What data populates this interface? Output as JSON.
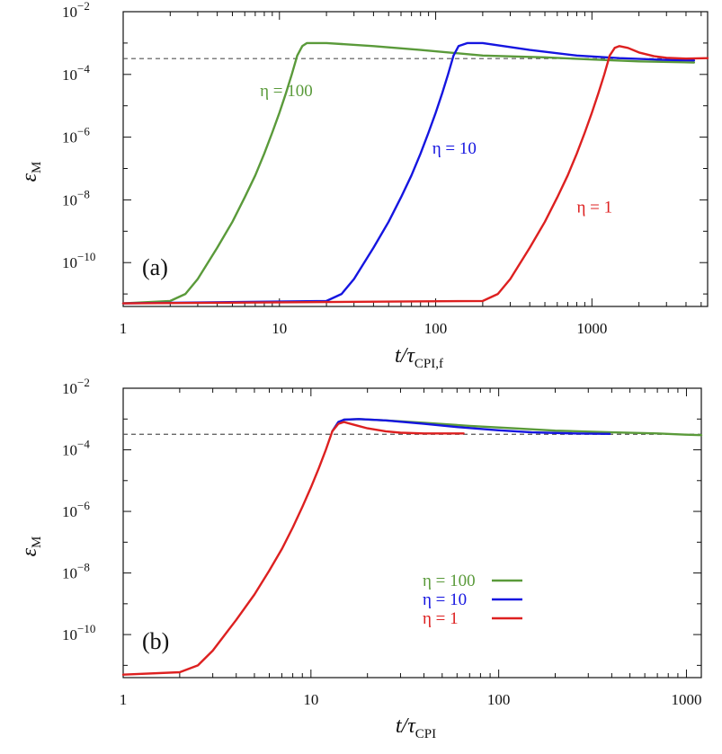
{
  "colors": {
    "eta100": "#5a9a3a",
    "eta10": "#1515e0",
    "eta1": "#dd2020",
    "ref": "#555555",
    "axis": "#111111"
  },
  "chart_data": [
    {
      "type": "line",
      "panel_label": "(a)",
      "xlabel": "t/τ",
      "xlabel_sub": "CPI,f",
      "ylabel": "ε",
      "ylabel_sub": "M",
      "xscale": "log",
      "yscale": "log",
      "xlim": [
        1,
        5500
      ],
      "ylim": [
        4e-12,
        0.01
      ],
      "x_ticks": [
        {
          "value": 1,
          "label": "1"
        },
        {
          "value": 10,
          "label": "10"
        },
        {
          "value": 100,
          "label": "100"
        },
        {
          "value": 1000,
          "label": "1000"
        }
      ],
      "y_ticks": [
        {
          "exp": -2,
          "label_base": "10",
          "label_exp": "−2"
        },
        {
          "exp": -4,
          "label_base": "10",
          "label_exp": "−4"
        },
        {
          "exp": -6,
          "label_base": "10",
          "label_exp": "−6"
        },
        {
          "exp": -8,
          "label_base": "10",
          "label_exp": "−8"
        },
        {
          "exp": -10,
          "label_base": "10",
          "label_exp": "−10"
        }
      ],
      "reference_line": {
        "y": 0.00032,
        "style": "dashed"
      },
      "series": [
        {
          "name": "η = 100",
          "color_key": "eta100",
          "x": [
            1,
            2,
            2.5,
            3,
            4,
            5,
            6,
            7,
            8,
            9,
            10,
            11,
            12,
            13,
            14,
            15,
            20,
            40,
            80,
            200,
            500,
            1000,
            2000,
            4500
          ],
          "y": [
            5e-12,
            6e-12,
            1e-11,
            3e-11,
            3e-10,
            2e-09,
            1.2e-08,
            6e-08,
            3e-07,
            1.4e-06,
            6e-06,
            2.5e-05,
            0.0001,
            0.0004,
            0.0008,
            0.001,
            0.001,
            0.0008,
            0.0006,
            0.0004,
            0.00035,
            0.0003,
            0.00026,
            0.00024
          ]
        },
        {
          "name": "η = 10",
          "color_key": "eta10",
          "x": [
            1,
            20,
            25,
            30,
            40,
            50,
            60,
            70,
            80,
            90,
            100,
            110,
            120,
            130,
            140,
            160,
            200,
            400,
            800,
            1500,
            3000,
            4500
          ],
          "y": [
            5e-12,
            6e-12,
            1e-11,
            3e-11,
            3e-10,
            2e-09,
            1.2e-08,
            6e-08,
            3e-07,
            1.4e-06,
            6e-06,
            2.5e-05,
            0.0001,
            0.0004,
            0.0008,
            0.001,
            0.001,
            0.0006,
            0.0004,
            0.00033,
            0.00029,
            0.00028
          ]
        },
        {
          "name": "η = 1",
          "color_key": "eta1",
          "x": [
            1,
            200,
            250,
            300,
            400,
            500,
            600,
            700,
            800,
            900,
            1000,
            1100,
            1200,
            1300,
            1400,
            1500,
            1700,
            2000,
            2500,
            3000,
            4000,
            5500
          ],
          "y": [
            5e-12,
            6e-12,
            1e-11,
            3e-11,
            3e-10,
            2e-09,
            1.2e-08,
            6e-08,
            3e-07,
            1.4e-06,
            6e-06,
            2.5e-05,
            0.0001,
            0.0004,
            0.0007,
            0.0008,
            0.0007,
            0.0005,
            0.00038,
            0.00034,
            0.00032,
            0.00033
          ]
        }
      ],
      "annotations": [
        {
          "text": "η = 100",
          "color_key": "eta100",
          "x": 7.5,
          "y": 2e-05
        },
        {
          "text": "η = 10",
          "color_key": "eta10",
          "x": 95,
          "y": 3e-07
        },
        {
          "text": "η = 1",
          "color_key": "eta1",
          "x": 800,
          "y": 4e-09
        }
      ]
    },
    {
      "type": "line",
      "panel_label": "(b)",
      "xlabel": "t/τ",
      "xlabel_sub": "CPI",
      "ylabel": "ε",
      "ylabel_sub": "M",
      "xscale": "log",
      "yscale": "log",
      "xlim": [
        1,
        1200
      ],
      "ylim": [
        4e-12,
        0.01
      ],
      "x_ticks": [
        {
          "value": 1,
          "label": "1"
        },
        {
          "value": 10,
          "label": "10"
        },
        {
          "value": 100,
          "label": "100"
        },
        {
          "value": 1000,
          "label": "1000"
        }
      ],
      "y_ticks": [
        {
          "exp": -2,
          "label_base": "10",
          "label_exp": "−2"
        },
        {
          "exp": -4,
          "label_base": "10",
          "label_exp": "−4"
        },
        {
          "exp": -6,
          "label_base": "10",
          "label_exp": "−6"
        },
        {
          "exp": -8,
          "label_base": "10",
          "label_exp": "−8"
        },
        {
          "exp": -10,
          "label_base": "10",
          "label_exp": "−10"
        }
      ],
      "reference_line": {
        "y": 0.00032,
        "style": "dashed"
      },
      "legend": {
        "position": "center-right",
        "entries": [
          {
            "label": "η = 100",
            "color_key": "eta100"
          },
          {
            "label": "η = 10",
            "color_key": "eta10"
          },
          {
            "label": "η = 1",
            "color_key": "eta1"
          }
        ]
      },
      "series": [
        {
          "name": "η = 100",
          "color_key": "eta100",
          "x": [
            13,
            14,
            15,
            18,
            25,
            40,
            70,
            120,
            200,
            400,
            700,
            1000,
            1200
          ],
          "y": [
            0.0004,
            0.0008,
            0.00095,
            0.001,
            0.0009,
            0.00075,
            0.0006,
            0.0005,
            0.00042,
            0.00037,
            0.00034,
            0.00031,
            0.0003
          ]
        },
        {
          "name": "η = 10",
          "color_key": "eta10",
          "x": [
            13,
            14,
            15,
            18,
            25,
            40,
            60,
            100,
            150,
            250,
            390
          ],
          "y": [
            0.0004,
            0.0008,
            0.00095,
            0.001,
            0.0009,
            0.0007,
            0.00055,
            0.00043,
            0.00037,
            0.00034,
            0.00033
          ]
        },
        {
          "name": "η = 1",
          "color_key": "eta1",
          "x": [
            1,
            2,
            2.5,
            3,
            4,
            5,
            6,
            7,
            8,
            9,
            10,
            11,
            12,
            13,
            14,
            15,
            17,
            20,
            25,
            30,
            40,
            65
          ],
          "y": [
            5e-12,
            6e-12,
            1e-11,
            3e-11,
            3e-10,
            2e-09,
            1.2e-08,
            6e-08,
            3e-07,
            1.4e-06,
            6e-06,
            2.5e-05,
            0.0001,
            0.0004,
            0.0007,
            0.0008,
            0.00065,
            0.0005,
            0.0004,
            0.00036,
            0.00034,
            0.00034
          ]
        }
      ]
    }
  ]
}
